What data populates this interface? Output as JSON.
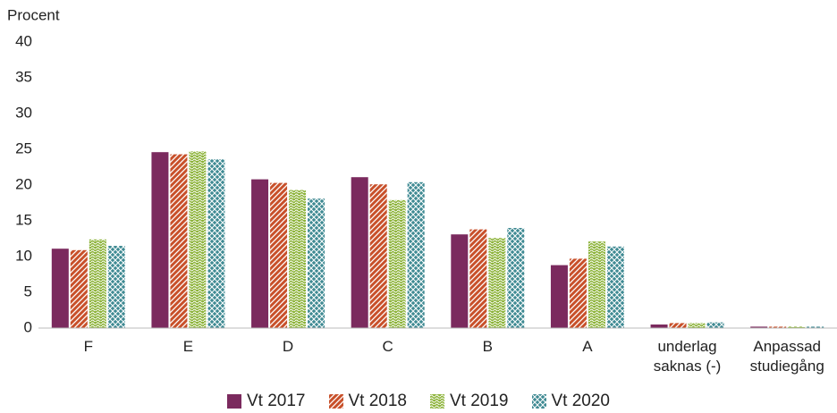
{
  "chart_data": {
    "type": "bar",
    "y_label": "Procent",
    "categories": [
      "F",
      "E",
      "D",
      "C",
      "B",
      "A",
      "underlag saknas (-)",
      "Anpassad studiegång"
    ],
    "series": [
      {
        "name": "Vt 2017",
        "color": "#7b2a5e",
        "values": [
          11.1,
          24.6,
          20.8,
          21.1,
          13.1,
          8.8,
          0.5,
          0.2
        ]
      },
      {
        "name": "Vt 2018",
        "color": "#c8502a",
        "values": [
          10.9,
          24.3,
          20.3,
          20.1,
          13.8,
          9.7,
          0.7,
          0.2
        ]
      },
      {
        "name": "Vt 2019",
        "color": "#8db33a",
        "values": [
          12.4,
          24.7,
          19.3,
          17.9,
          12.6,
          12.1,
          0.7,
          0.2
        ]
      },
      {
        "name": "Vt 2020",
        "color": "#3f8a93",
        "values": [
          11.5,
          23.6,
          18.1,
          20.4,
          14.0,
          11.4,
          0.8,
          0.2
        ]
      }
    ],
    "ylim": [
      0,
      40
    ],
    "yticks": [
      0,
      5,
      10,
      15,
      20,
      25,
      30,
      35,
      40
    ],
    "grid": false,
    "legend": "bottom"
  }
}
